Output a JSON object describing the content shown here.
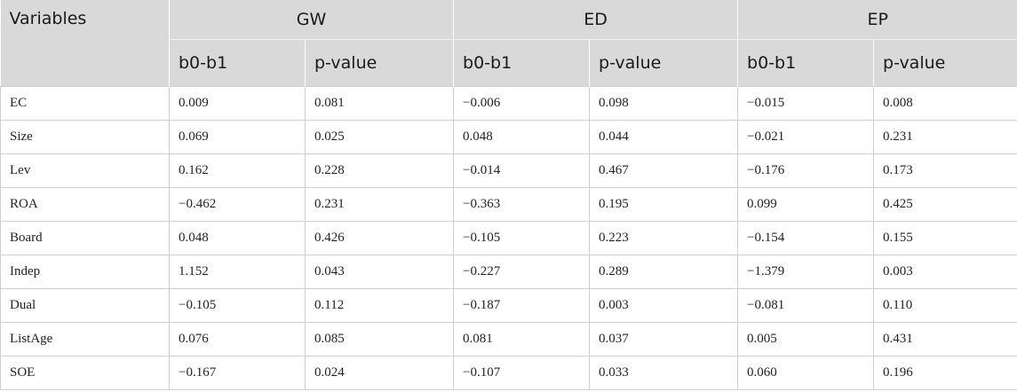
{
  "header": {
    "variables_label": "Variables",
    "groups": [
      "GW",
      "ED",
      "EP"
    ],
    "sub": [
      "b0-b1",
      "p-value",
      "b0-b1",
      "p-value",
      "b0-b1",
      "p-value"
    ]
  },
  "rows": [
    {
      "var": "EC",
      "vals": [
        "0.009",
        "0.081",
        "−0.006",
        "0.098",
        "−0.015",
        "0.008"
      ]
    },
    {
      "var": "Size",
      "vals": [
        "0.069",
        "0.025",
        "0.048",
        "0.044",
        "−0.021",
        "0.231"
      ]
    },
    {
      "var": "Lev",
      "vals": [
        "0.162",
        "0.228",
        "−0.014",
        "0.467",
        "−0.176",
        "0.173"
      ]
    },
    {
      "var": "ROA",
      "vals": [
        "−0.462",
        "0.231",
        "−0.363",
        "0.195",
        "0.099",
        "0.425"
      ]
    },
    {
      "var": "Board",
      "vals": [
        "0.048",
        "0.426",
        "−0.105",
        "0.223",
        "−0.154",
        "0.155"
      ]
    },
    {
      "var": "Indep",
      "vals": [
        "1.152",
        "0.043",
        "−0.227",
        "0.289",
        "−1.379",
        "0.003"
      ]
    },
    {
      "var": "Dual",
      "vals": [
        "−0.105",
        "0.112",
        "−0.187",
        "0.003",
        "−0.081",
        "0.110"
      ]
    },
    {
      "var": "ListAge",
      "vals": [
        "0.076",
        "0.085",
        "0.081",
        "0.037",
        "0.005",
        "0.431"
      ]
    },
    {
      "var": "SOE",
      "vals": [
        "−0.167",
        "0.024",
        "−0.107",
        "0.033",
        "0.060",
        "0.196"
      ]
    }
  ]
}
